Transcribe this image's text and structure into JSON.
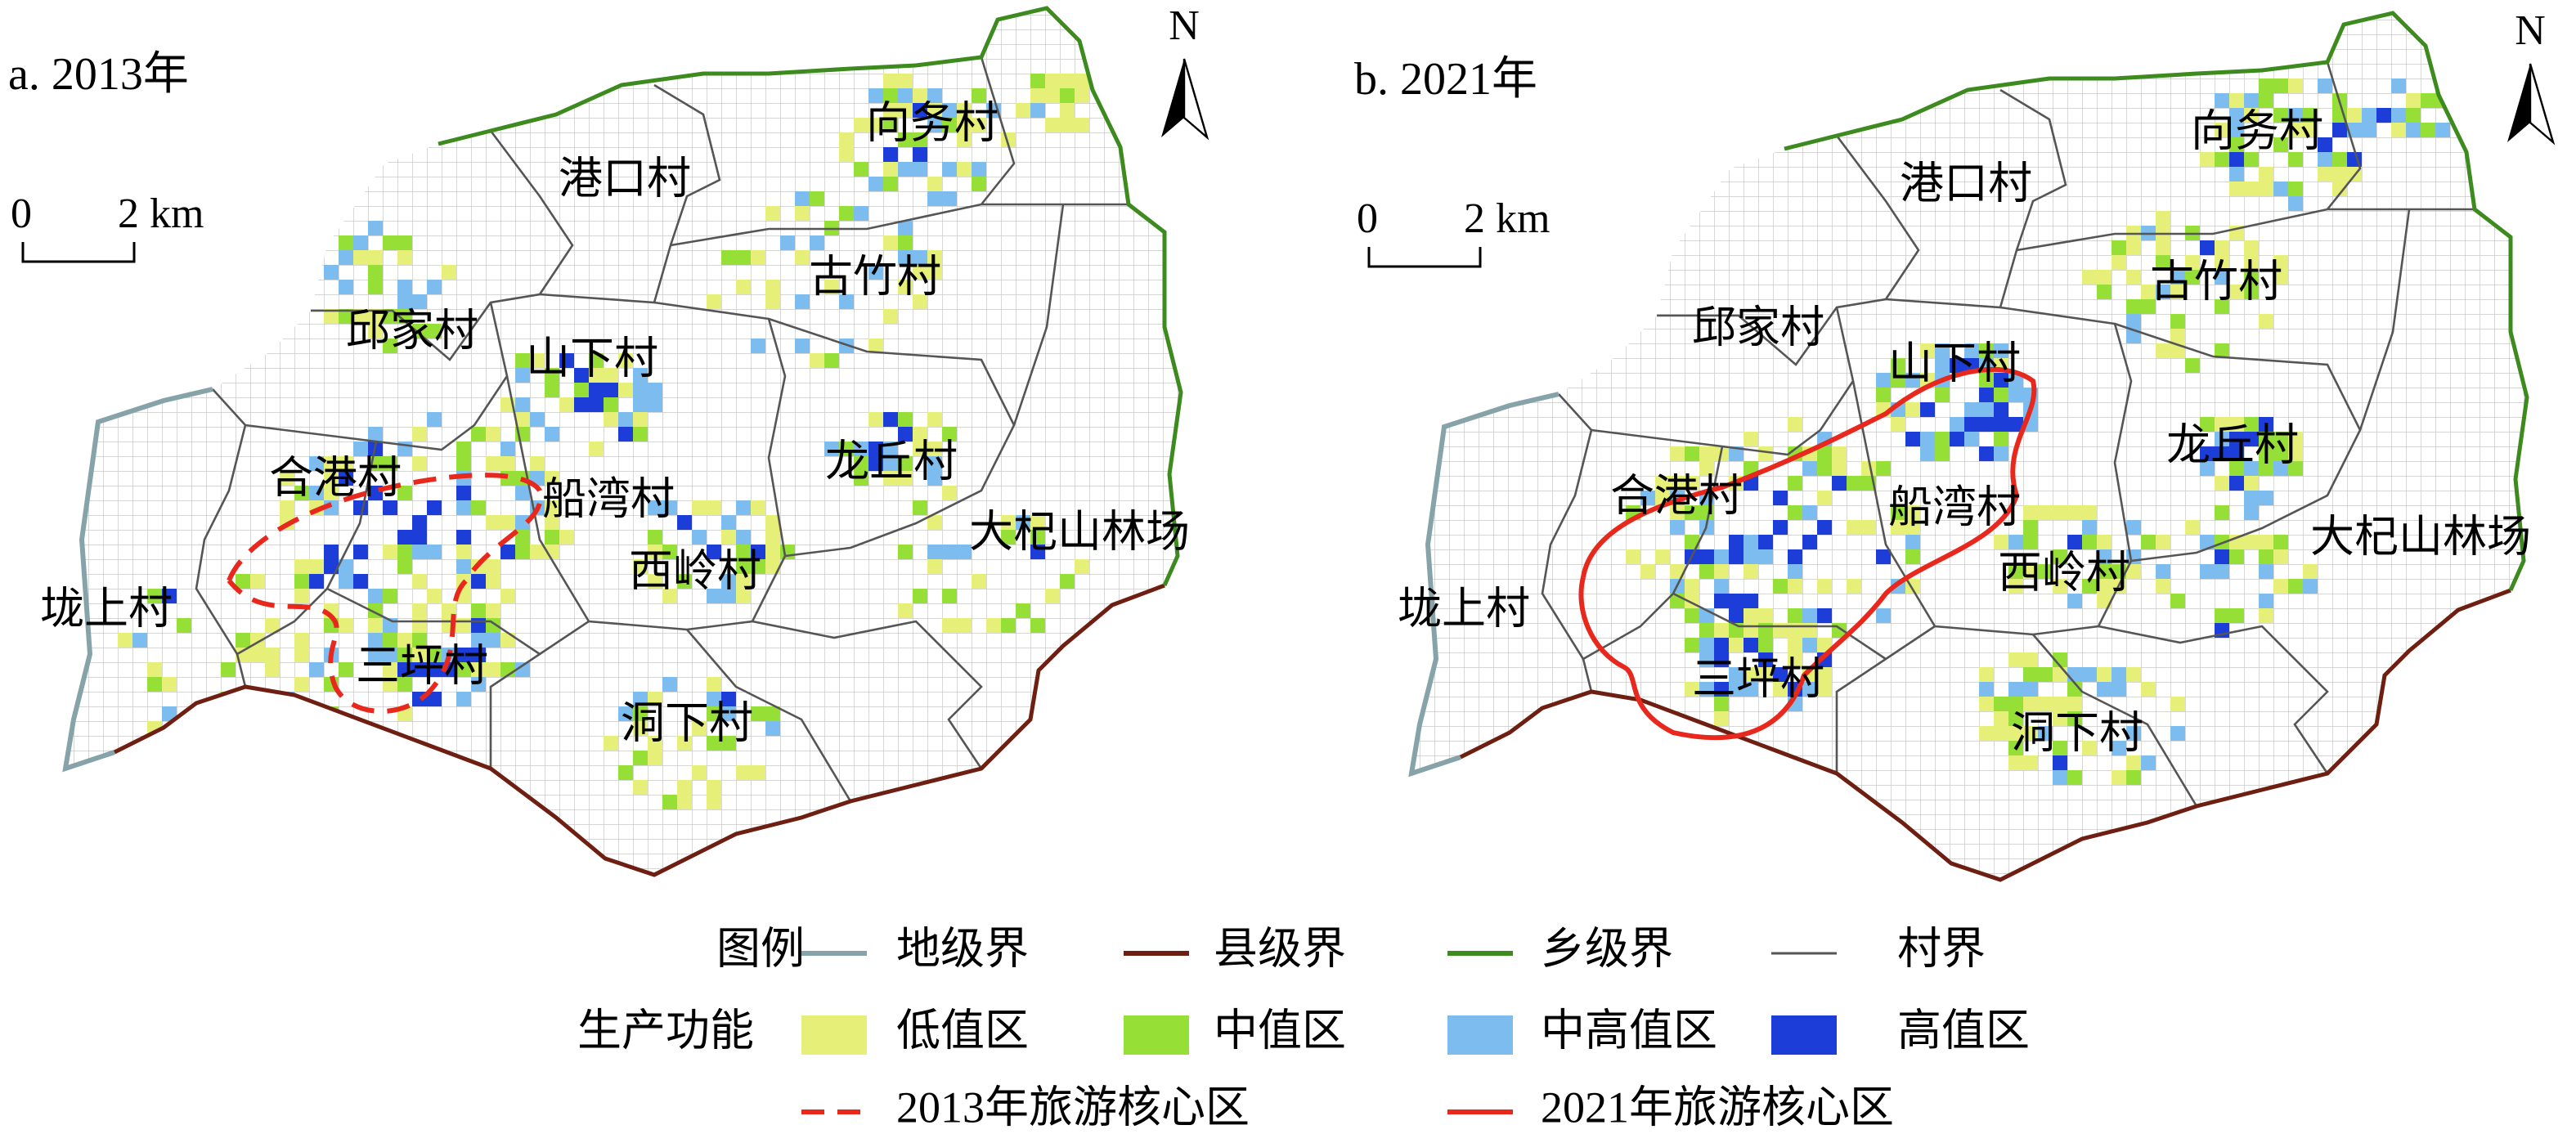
{
  "panels": [
    {
      "title": "a. 2013年",
      "north": "N",
      "scale": {
        "zero": "0",
        "unit": "2 km"
      },
      "labels": [
        "向务村",
        "港口村",
        "古竹村",
        "邱家村",
        "山下村",
        "龙丘村",
        "合港村",
        "船湾村",
        "大杞山林场",
        "西岭村",
        "垅上村",
        "三坪村",
        "洞下村"
      ]
    },
    {
      "title": "b. 2021年",
      "north": "N",
      "scale": {
        "zero": "0",
        "unit": "2 km"
      },
      "labels": [
        "向务村",
        "港口村",
        "古竹村",
        "邱家村",
        "山下村",
        "龙丘村",
        "合港村",
        "船湾村",
        "大杞山林场",
        "西岭村",
        "垅上村",
        "三坪村",
        "洞下村"
      ]
    }
  ],
  "legend": {
    "title": "图例",
    "boundaries": [
      "地级界",
      "县级界",
      "乡级界",
      "村界"
    ],
    "function_title": "生产功能",
    "classes": [
      "低值区",
      "中值区",
      "中高值区",
      "高值区"
    ],
    "cores": [
      "2013年旅游核心区",
      "2021年旅游核心区"
    ]
  }
}
